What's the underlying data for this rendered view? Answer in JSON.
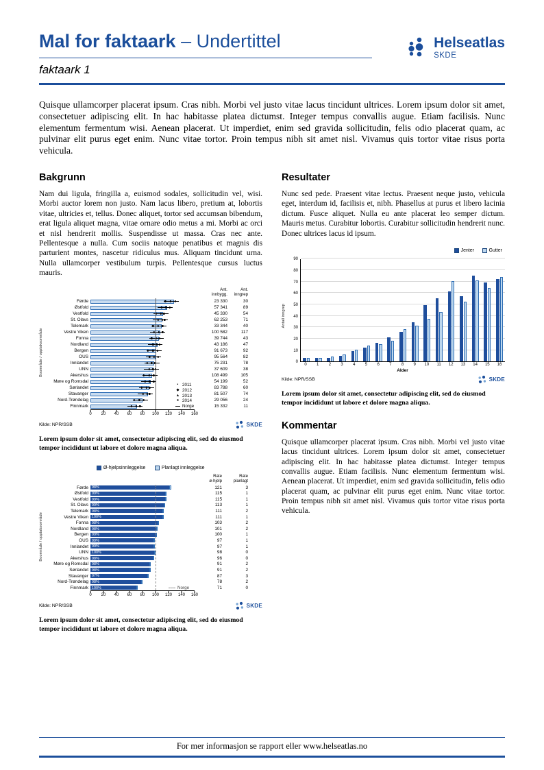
{
  "header": {
    "title": "Mal for faktaark",
    "title_suffix": " – Undertittel",
    "subtitle": "faktaark 1",
    "logo_name": "Helseatlas",
    "logo_sub": "SKDE"
  },
  "brand": {
    "skde": "SKDE"
  },
  "colors": {
    "brand": "#1B4E9B",
    "bar_dark": "#1F4E9C",
    "bar_light": "#BDD7EE",
    "bar_fill": "#C9DCF0",
    "bar_border": "#2E6DB4"
  },
  "intro": "Quisque ullamcorper placerat ipsum. Cras nibh. Morbi vel justo vitae lacus tincidunt ultrices. Lorem ipsum dolor sit amet, consectetuer adipiscing elit. In hac habitasse platea dictumst. Integer tempus convallis augue. Etiam facilisis. Nunc elementum fermentum wisi. Aenean placerat. Ut imperdiet, enim sed gravida sollicitudin, felis odio placerat quam, ac pulvinar elit purus eget enim. Nunc vitae tortor. Proin tempus nibh sit amet nisl. Vivamus quis tortor vitae risus porta vehicula.",
  "sections": {
    "bakgrunn": {
      "heading": "Bakgrunn",
      "body": "Nam dui ligula, fringilla a, euismod sodales, sollicitudin vel, wisi. Morbi auctor lorem non justo. Nam lacus libero, pretium at, lobortis vitae, ultricies et, tellus. Donec aliquet, tortor sed accumsan bibendum, erat ligula aliquet magna, vitae ornare odio metus a mi. Morbi ac orci et nisl hendrerit mollis. Suspendisse ut massa. Cras nec ante. Pellentesque a nulla. Cum sociis natoque penatibus et magnis dis parturient montes, nascetur ridiculus mus. Aliquam tincidunt urna. Nulla ullamcorper vestibulum turpis. Pellentesque cursus luctus mauris."
    },
    "resultater": {
      "heading": "Resultater",
      "body": "Nunc sed pede. Praesent vitae lectus. Praesent neque justo, vehicula eget, interdum id, facilisis et, nibh. Phasellus at purus et libero lacinia dictum. Fusce aliquet. Nulla eu ante placerat leo semper dictum. Mauris metus. Curabitur lobortis. Curabitur sollicitudin hendrerit nunc. Donec ultrices lacus id ipsum."
    },
    "kommentar": {
      "heading": "Kommentar",
      "body": "Quisque ullamcorper placerat ipsum. Cras nibh. Morbi vel justo vitae lacus tincidunt ultrices. Lorem ipsum dolor sit amet, consectetuer adipiscing elit. In hac habitasse platea dictumst. Integer tempus convallis augue. Etiam facilisis. Nunc elementum fermentum wisi. Aenean placerat. Ut imperdiet, enim sed gravida sollicitudin, felis odio placerat quam, ac pulvinar elit purus eget enim. Nunc vitae tortor. Proin tempus nibh sit amet nisl. Vivamus quis tortor vitae risus porta vehicula."
    }
  },
  "captions": {
    "chart1": "Lorem ipsum dolor sit amet, consectetur adipiscing elit, sed do eiusmod tempor incididunt ut labore et dolore magna aliqua.",
    "chart2": "Lorem ipsum dolor sit amet, consectetur adipiscing elit, sed do eiusmod tempor incididunt ut labore et dolore magna aliqua.",
    "chart3": "Lorem ipsum dolor sit amet, consectetur adipiscing elit, sed do eiusmod tempor incididunt ut labore et dolore magna aliqua."
  },
  "footer": {
    "text": "For mer informasjon se rapport eller www.helseatlas.no"
  },
  "chart_data": [
    {
      "type": "bar",
      "orientation": "horizontal",
      "ylabel": "Boområde / opptaksområde",
      "columns": [
        "Ant.\ninnbygg.",
        "Ant.\ninngrep"
      ],
      "categories": [
        "Førde",
        "Østfold",
        "Vestfold",
        "St. Olavs",
        "Telemark",
        "Vestre Viken",
        "Fonna",
        "Nordland",
        "Bergen",
        "OUS",
        "Innlandet",
        "UNN",
        "Akershus",
        "Møre og Romsdal",
        "Sørlandet",
        "Stavanger",
        "Nord-Trøndelag",
        "Finnmark"
      ],
      "rates": [
        128,
        118,
        112,
        111,
        109,
        107,
        105,
        103,
        101,
        100,
        98,
        97,
        95,
        93,
        90,
        88,
        80,
        72
      ],
      "innbygg": [
        "23 330",
        "57 341",
        "45 330",
        "62 253",
        "33 344",
        "100 582",
        "39 744",
        "43 186",
        "91 673",
        "95 564",
        "75 231",
        "37 609",
        "108 499",
        "54 199",
        "83 788",
        "81 507",
        "29 056",
        "15 332"
      ],
      "inngrep": [
        "30",
        "89",
        "54",
        "71",
        "40",
        "117",
        "43",
        "47",
        "92",
        "82",
        "78",
        "38",
        "105",
        "52",
        "60",
        "74",
        "24",
        "11"
      ],
      "xmax": 160,
      "xticks": [
        0,
        20,
        40,
        60,
        80,
        100,
        120,
        140,
        160
      ],
      "legend_years": [
        {
          "marker": "▪",
          "label": "2011"
        },
        {
          "marker": "◆",
          "label": "2012"
        },
        {
          "marker": "▲",
          "label": "2013"
        },
        {
          "marker": "●",
          "label": "2014"
        }
      ],
      "norge_label": "Norge",
      "norge_value": 100,
      "source": "Kilde: NPR/SSB"
    },
    {
      "type": "bar",
      "orientation": "horizontal",
      "stacked": true,
      "legend": [
        "Ø-hjelpsinnleggelse",
        "Planlagt innleggelse"
      ],
      "ylabel": "Boområde / opptaksområde",
      "rate_headers": [
        "Rate\nø-hjelp",
        "Rate\nplanlagt"
      ],
      "categories": [
        "Førde",
        "Østfold",
        "Vestfold",
        "St. Olavs",
        "Telemark",
        "Vestre Viken",
        "Fonna",
        "Nordland",
        "Bergen",
        "OUS",
        "Innlandet",
        "UNN",
        "Akershus",
        "Møre og Romsdal",
        "Sørlandet",
        "Stavanger",
        "Nord-Trøndelag",
        "Finnmark"
      ],
      "pct": [
        "98%",
        "99%",
        "99%",
        "99%",
        "98%",
        "100%",
        "98%",
        "98%",
        "99%",
        "99%",
        "99%",
        "100%",
        "98%",
        "98%",
        "98%",
        "97%",
        "98%",
        "100%"
      ],
      "rate_ohjelp": [
        121,
        115,
        115,
        113,
        111,
        111,
        103,
        101,
        100,
        97,
        97,
        98,
        96,
        91,
        91,
        87,
        78,
        71
      ],
      "rate_planlagt": [
        3,
        1,
        1,
        1,
        2,
        1,
        2,
        2,
        1,
        1,
        1,
        0,
        0,
        2,
        2,
        3,
        2,
        0
      ],
      "xmax": 160,
      "xticks": [
        0,
        20,
        40,
        60,
        80,
        100,
        120,
        140,
        160
      ],
      "norge_label": "Norge",
      "norge_value": 100,
      "source": "Kilde: NPR/SSB"
    },
    {
      "type": "bar",
      "orientation": "vertical",
      "xlabel": "Alder",
      "ylabel": "Antall inngrep",
      "categories": [
        "0",
        "1",
        "2",
        "3",
        "4",
        "5",
        "6",
        "7",
        "8",
        "9",
        "10",
        "11",
        "12",
        "13",
        "14",
        "15",
        "16"
      ],
      "series": [
        {
          "name": "Jenter",
          "values": [
            3,
            3,
            3,
            5,
            9,
            12,
            16,
            21,
            26,
            34,
            49,
            55,
            61,
            57,
            75,
            69,
            72
          ]
        },
        {
          "name": "Gutter",
          "values": [
            3,
            3,
            4,
            6,
            10,
            14,
            15,
            18,
            28,
            31,
            37,
            43,
            70,
            52,
            71,
            64,
            74
          ]
        }
      ],
      "ylim": [
        0,
        90
      ],
      "ytick_step": 10,
      "source": "Kilde: NPR/SSB"
    }
  ]
}
